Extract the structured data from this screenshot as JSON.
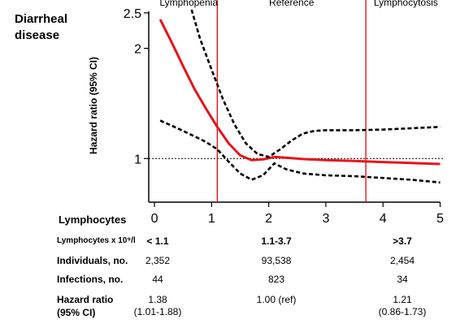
{
  "title": {
    "line1": "Diarrheal",
    "line2": "disease"
  },
  "chart_data": {
    "type": "line",
    "ylabel": "Hazard ratio (95% CI)",
    "xlabel": "Lymphocytes",
    "y_scale": "log",
    "xlim": [
      -0.1,
      5.05
    ],
    "ylim": [
      0.76,
      2.55
    ],
    "x_ticks": [
      0,
      1,
      2,
      3,
      4,
      5
    ],
    "y_ticks": [
      1,
      2,
      2.5
    ],
    "reference_line_y": 1,
    "vertical_lines": [
      {
        "x": 1.1,
        "label": "Lymphopenia"
      },
      {
        "x": 3.7,
        "label": "Lymphocytosis"
      }
    ],
    "region_labels": [
      {
        "x": 0.6,
        "text": "Lymphopenia"
      },
      {
        "x": 2.4,
        "text": "Reference"
      },
      {
        "x": 4.4,
        "text": "Lymphocytosis"
      }
    ],
    "series": [
      {
        "role": "estimate",
        "color": "#e8141b",
        "x": [
          0.1,
          0.3,
          0.5,
          0.7,
          0.9,
          1.1,
          1.3,
          1.5,
          1.7,
          1.9,
          2.1,
          2.3,
          2.6,
          3.0,
          3.5,
          4.0,
          4.5,
          5.0
        ],
        "y": [
          2.4,
          2.08,
          1.79,
          1.55,
          1.37,
          1.22,
          1.1,
          1.02,
          0.99,
          0.995,
          1.01,
          1.005,
          0.997,
          0.99,
          0.985,
          0.978,
          0.972,
          0.966
        ]
      },
      {
        "role": "upper_ci",
        "color": "#000000",
        "x": [
          0.65,
          0.8,
          1.0,
          1.2,
          1.4,
          1.6,
          1.8,
          2.0,
          2.2,
          2.4,
          2.6,
          2.8,
          3.0,
          3.5,
          4.0,
          4.5,
          5.0
        ],
        "y": [
          2.55,
          2.12,
          1.75,
          1.45,
          1.24,
          1.1,
          1.03,
          1.01,
          1.06,
          1.12,
          1.17,
          1.19,
          1.195,
          1.195,
          1.2,
          1.21,
          1.22
        ]
      },
      {
        "role": "lower_ci",
        "color": "#000000",
        "x": [
          0.1,
          0.3,
          0.5,
          0.7,
          0.9,
          1.1,
          1.3,
          1.5,
          1.7,
          1.9,
          2.1,
          2.3,
          2.6,
          3.0,
          3.5,
          4.0,
          4.5,
          5.0
        ],
        "y": [
          1.27,
          1.23,
          1.19,
          1.15,
          1.11,
          1.06,
          0.98,
          0.91,
          0.875,
          0.9,
          0.97,
          0.935,
          0.91,
          0.9,
          0.895,
          0.885,
          0.875,
          0.86
        ]
      }
    ]
  },
  "table": {
    "header_label": "Lymphocytes x 10⁹/l",
    "columns": [
      "< 1.1",
      "1.1-3.7",
      ">3.7"
    ],
    "rows": [
      {
        "label": "Individuals, no.",
        "values": [
          "2,352",
          "93,538",
          "2,454"
        ]
      },
      {
        "label": "Infections, no.",
        "values": [
          "44",
          "823",
          "34"
        ]
      }
    ],
    "hazard": {
      "label_line1": "Hazard ratio",
      "label_line2": "(95%  CI)",
      "values_line1": [
        "1.38",
        "1.00 (ref)",
        "1.21"
      ],
      "values_line2": [
        "(1.01-1.88)",
        "",
        "(0.86-1.73)"
      ]
    }
  }
}
